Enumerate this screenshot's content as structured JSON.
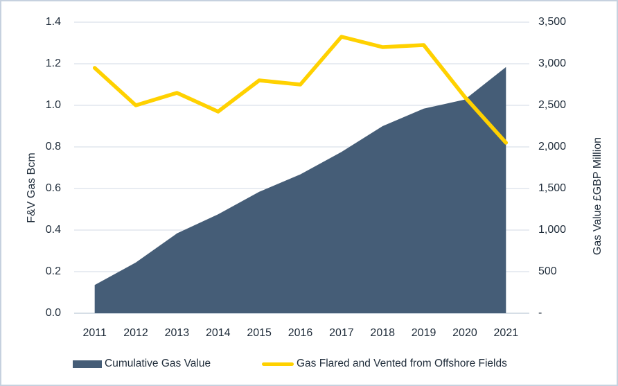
{
  "chart_data": {
    "type": "combo",
    "categories": [
      "2011",
      "2012",
      "2013",
      "2014",
      "2015",
      "2016",
      "2017",
      "2018",
      "2019",
      "2020",
      "2021"
    ],
    "series": [
      {
        "name": "Cumulative Gas Value",
        "type": "area",
        "axis": "right",
        "color": "#455d77",
        "values": [
          340,
          610,
          960,
          1190,
          1460,
          1670,
          1940,
          2250,
          2460,
          2570,
          2960
        ]
      },
      {
        "name": "Gas Flared and Vented from Offshore Fields",
        "type": "line",
        "axis": "left",
        "color": "#ffd100",
        "values": [
          1.18,
          1.0,
          1.06,
          0.97,
          1.12,
          1.1,
          1.33,
          1.28,
          1.29,
          1.04,
          0.82
        ]
      }
    ],
    "left_axis": {
      "title": "F&V Gas Bcm",
      "min": 0,
      "max": 1.4,
      "step": 0.2,
      "tick_labels_top_to_bottom": [
        "1.4",
        "1.2",
        "1.0",
        "0.8",
        "0.6",
        "0.4",
        "0.2",
        "0.0"
      ]
    },
    "right_axis": {
      "title": "Gas Value £GBP Million",
      "min": 0,
      "max": 3500,
      "step": 500,
      "tick_labels_top_to_bottom": [
        "3,500",
        "3,000",
        "2,500",
        "2,000",
        "1,500",
        "1,000",
        "500",
        "-"
      ]
    },
    "grid": true,
    "legend_position": "bottom"
  },
  "colors": {
    "background": "#ffffff",
    "frame_border": "#c6d1df",
    "gridline": "#dae1ea",
    "baseline": "#c9d3de",
    "text": "#1f2c3a",
    "area_series": "#455d77",
    "line_series": "#ffd100"
  }
}
